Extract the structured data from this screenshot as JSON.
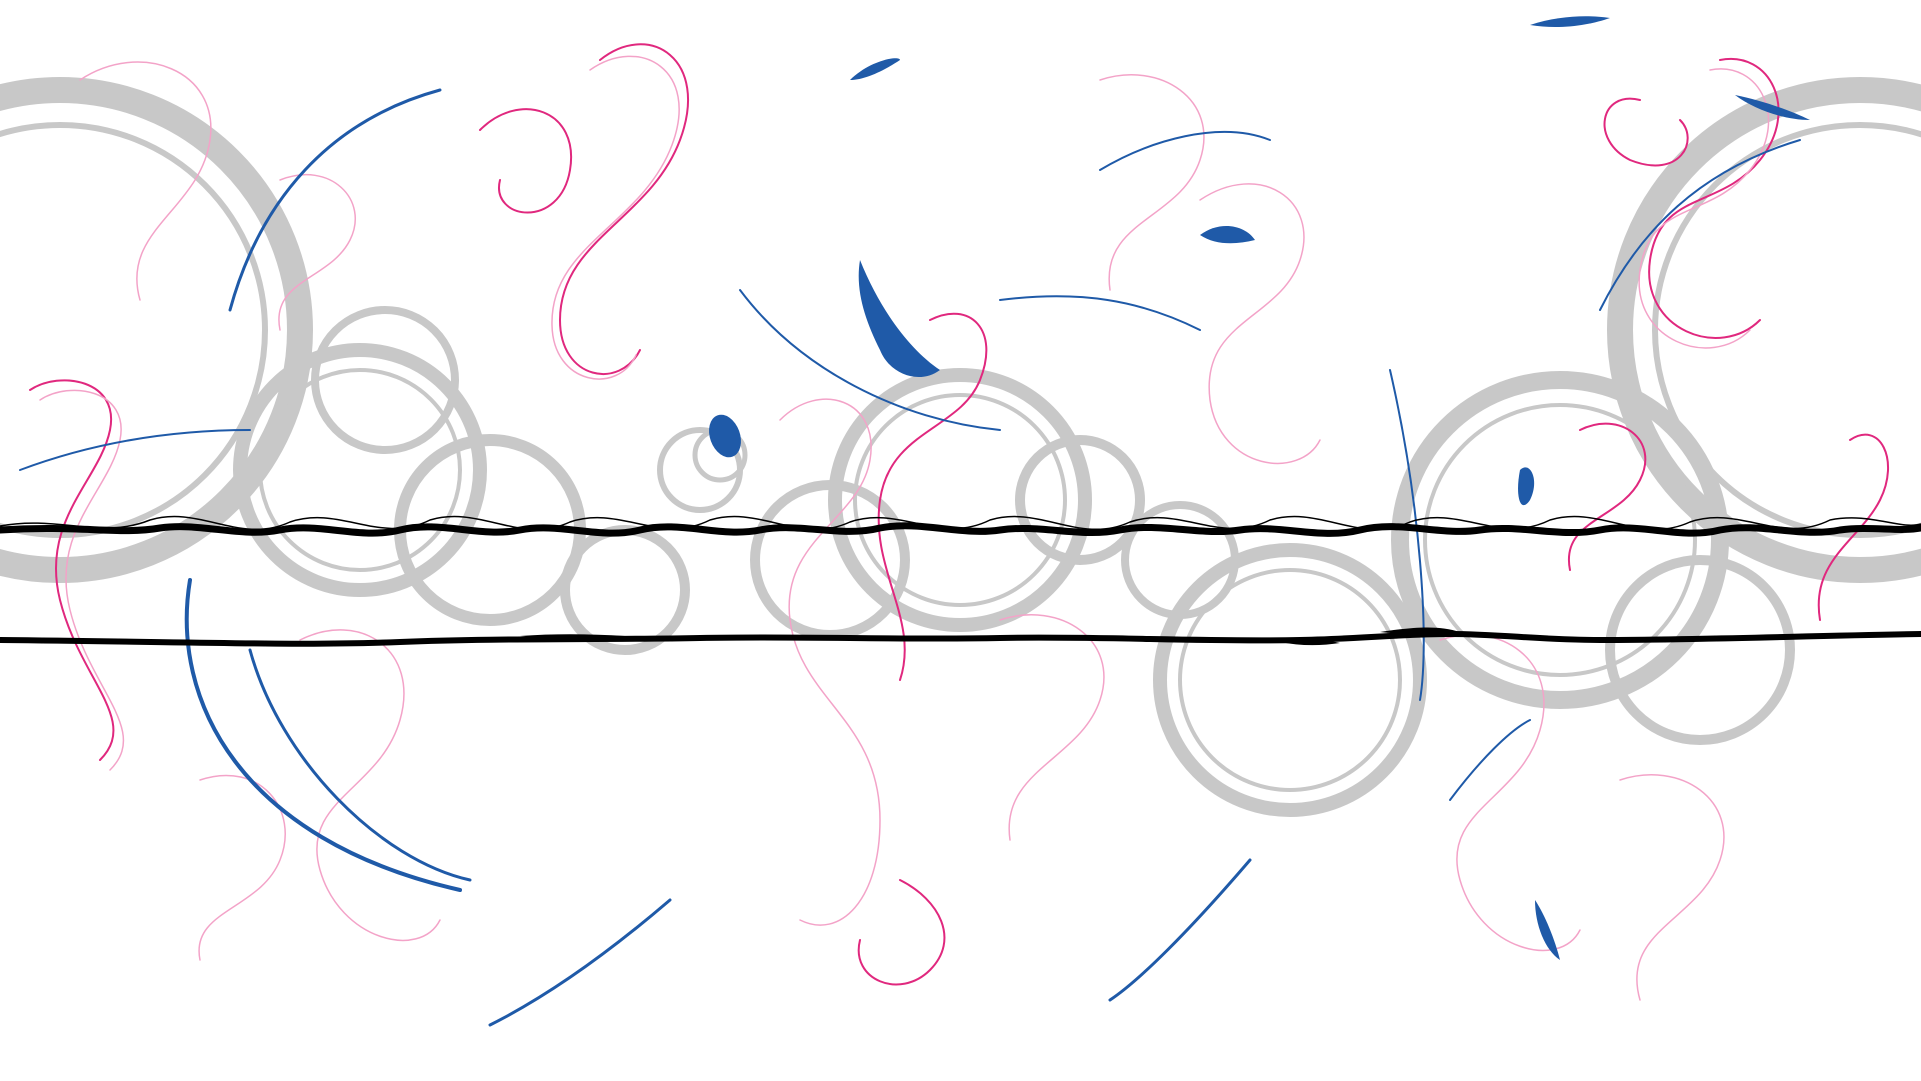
{
  "artwork": {
    "style": "abstract marbled swirl pattern with concentric rings and two horizontal lines",
    "colors": {
      "background": "#ffffff",
      "swirl": "#e0287e",
      "swirl_light": "#f3a3c8",
      "accent": "#1f5aa8",
      "rings": "#c8c8c8",
      "line": "#000000"
    },
    "elements": [
      "background",
      "ring-group",
      "swirl-group",
      "blue-stroke-group",
      "horizontal-line-upper",
      "horizontal-line-lower"
    ]
  }
}
